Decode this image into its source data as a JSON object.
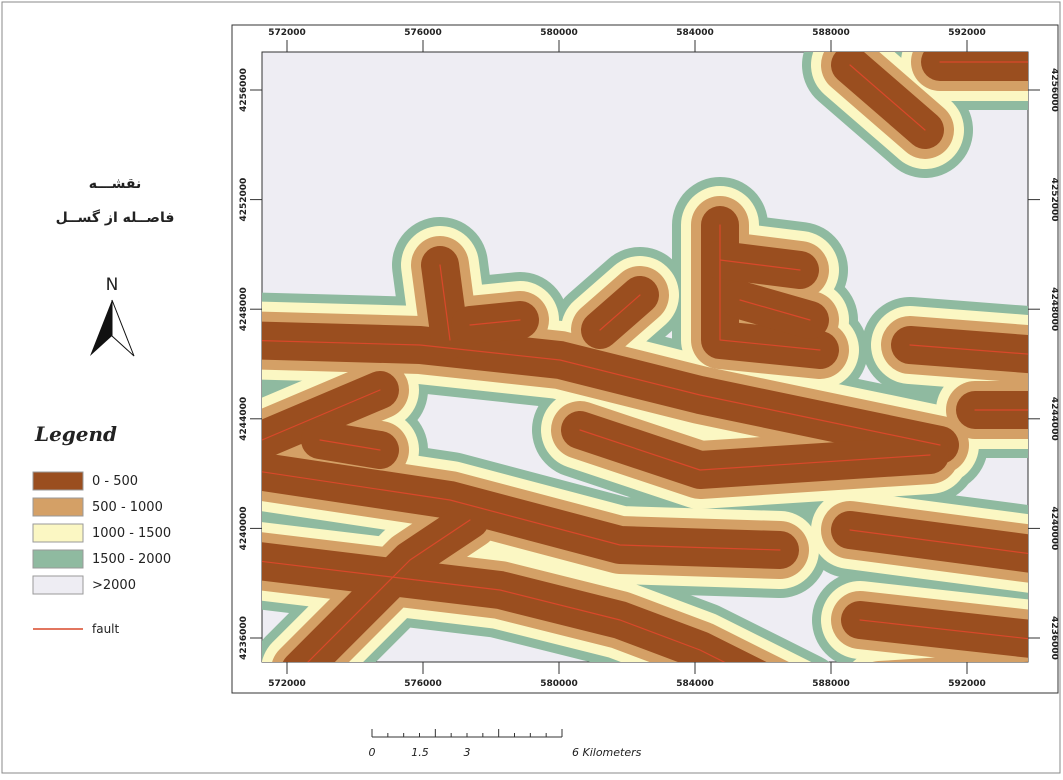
{
  "title_lines": [
    "نقشـــه",
    "فاصــله از گســل"
  ],
  "north": "N",
  "legend": {
    "title": "Legend",
    "items": [
      {
        "label": "0 - 500",
        "color": "#9a4e1f"
      },
      {
        "label": "500 - 1000",
        "color": "#d4a066"
      },
      {
        "label": "1000 - 1500",
        "color": "#fbf7c3"
      },
      {
        "label": "1500 - 2000",
        "color": "#8fbaa0"
      },
      {
        "label": ">2000",
        "color": "#eeedf3"
      }
    ],
    "fault": {
      "label": "fault",
      "color": "#d9482a"
    }
  },
  "x_ticks": [
    572000,
    576000,
    580000,
    584000,
    588000,
    592000
  ],
  "y_ticks": [
    4236000,
    4240000,
    4244000,
    4248000,
    4252000,
    4256000
  ],
  "scale_bar": {
    "labels": [
      "0",
      "1.5",
      "3",
      "6 Kilometers"
    ]
  }
}
